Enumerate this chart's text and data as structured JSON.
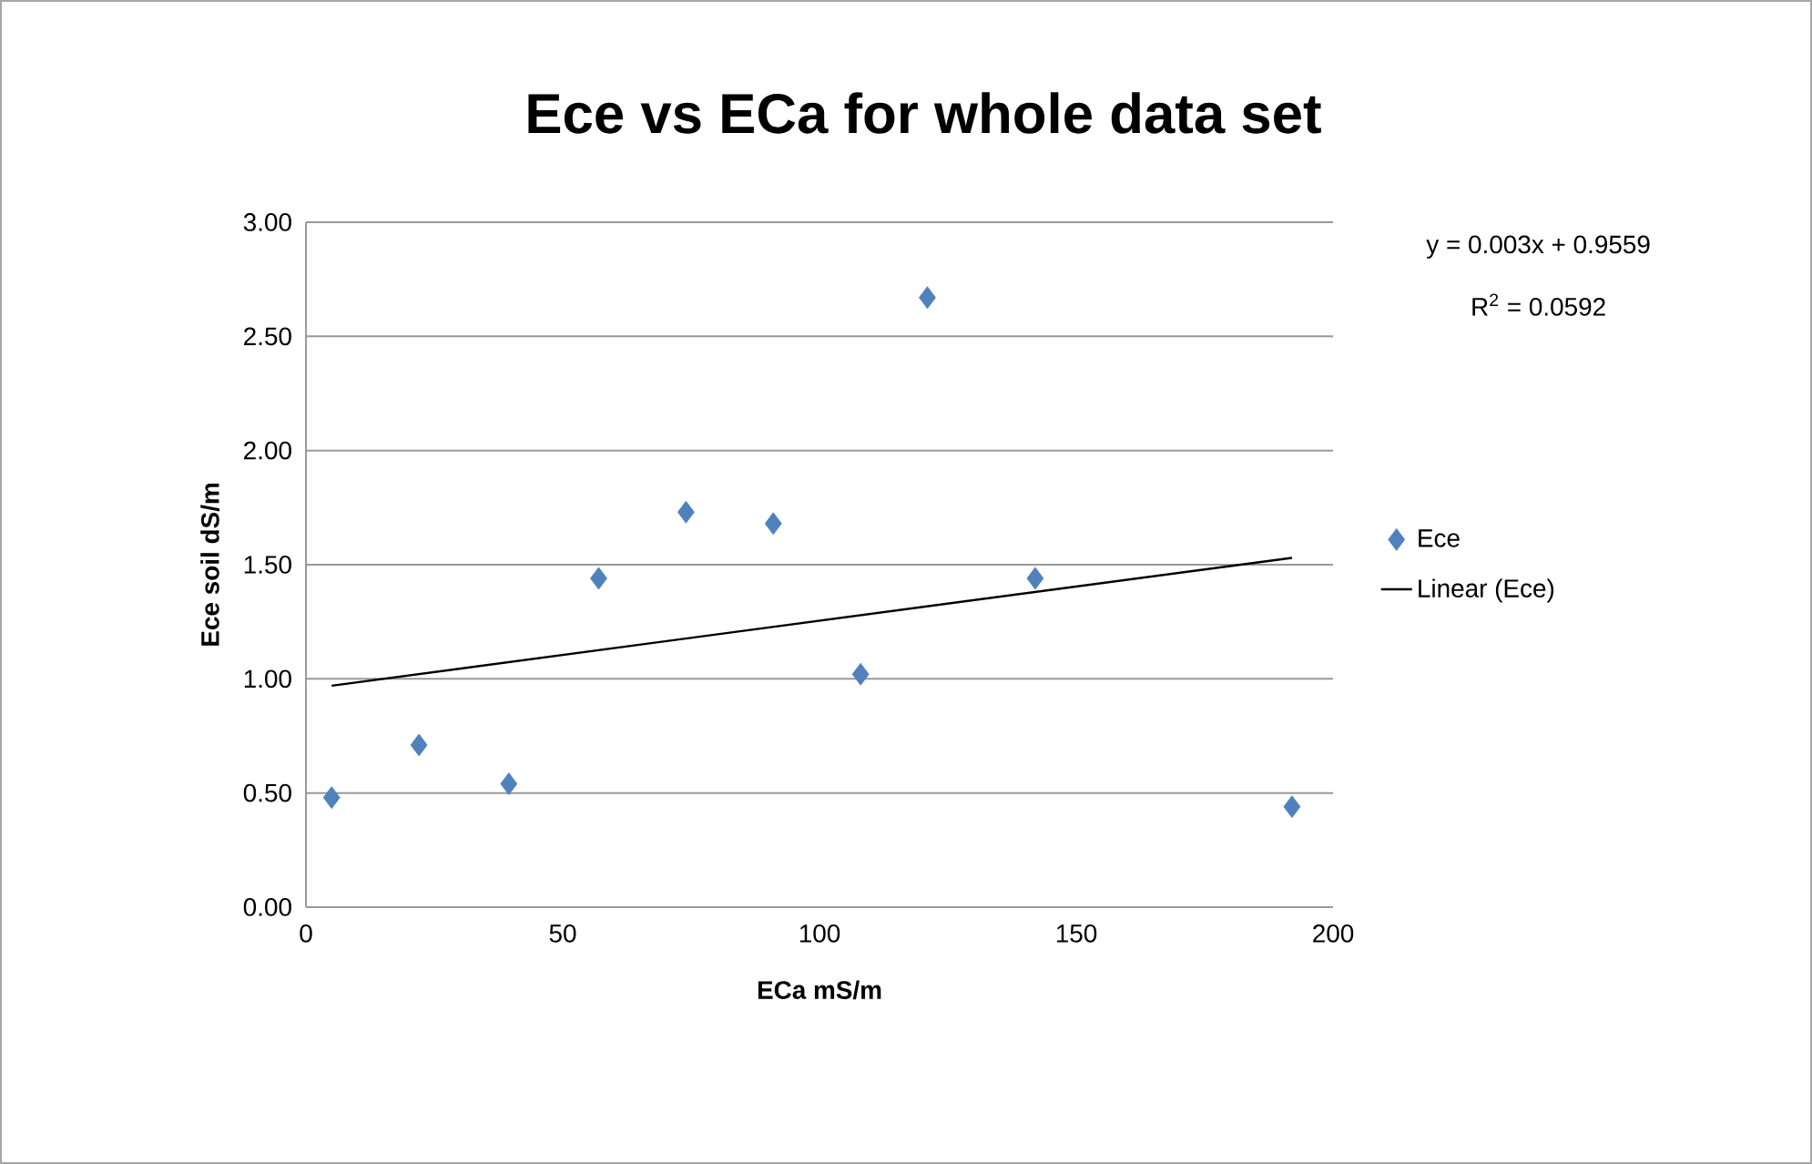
{
  "chart_data": {
    "type": "scatter",
    "title": "Ece vs ECa for whole data set",
    "xlabel": "ECa mS/m",
    "ylabel": "Ece  soil dS/m",
    "x": [
      5,
      22,
      39.5,
      57,
      74,
      91,
      108,
      121,
      142,
      192
    ],
    "series": [
      {
        "name": "Ece",
        "color": "#4f81bd",
        "marker": "diamond",
        "values": [
          0.48,
          0.71,
          0.54,
          1.44,
          1.73,
          1.68,
          1.02,
          2.67,
          1.44,
          0.44
        ]
      },
      {
        "name": "Linear (Ece)",
        "type": "line",
        "color": "#000000",
        "marker": "none",
        "x": [
          5,
          192
        ],
        "values": [
          0.97,
          1.53
        ]
      }
    ],
    "annotations": [
      "y = 0.003x + 0.9559",
      "R$^{2}$ = 0.0592"
    ],
    "xlim": [
      0,
      200
    ],
    "ylim": [
      0,
      3
    ],
    "xticks": [
      0,
      50,
      100,
      150,
      200
    ],
    "yticks": [
      {
        "value": 0,
        "label": "0.00"
      },
      {
        "value": 0.5,
        "label": "0.50"
      },
      {
        "value": 1,
        "label": "1.00"
      },
      {
        "value": 1.5,
        "label": "1.50"
      },
      {
        "value": 2,
        "label": "2.00"
      },
      {
        "value": 2.5,
        "label": "2.50"
      },
      {
        "value": 3,
        "label": "3.00"
      }
    ],
    "grid": "y",
    "legend": "right"
  }
}
